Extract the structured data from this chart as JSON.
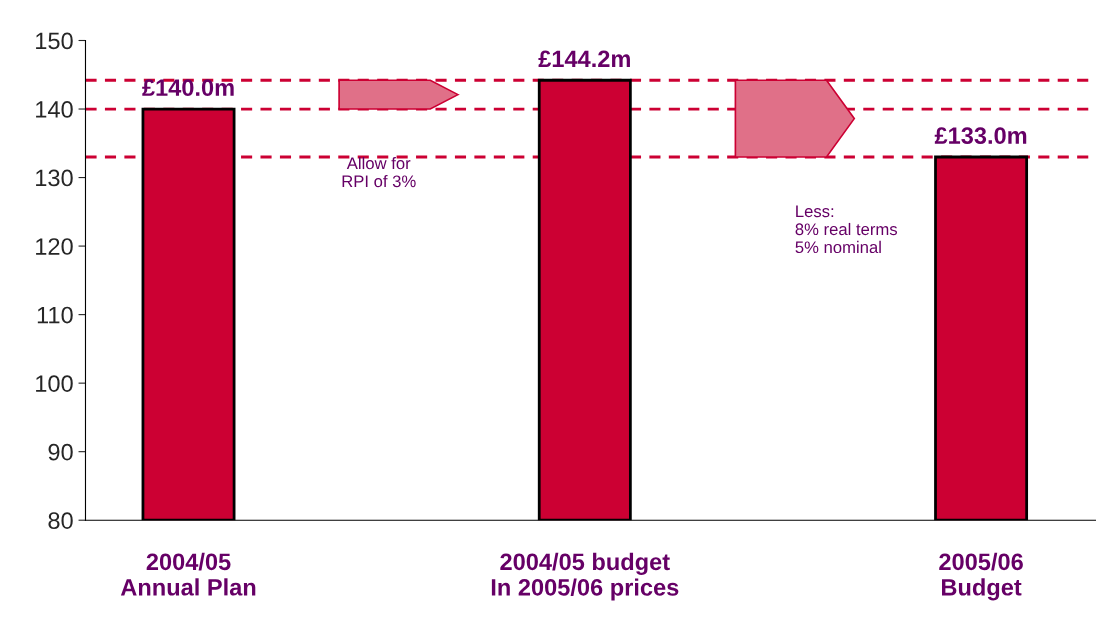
{
  "chart_data": {
    "type": "bar",
    "categories": [
      "2004/05\nAnnual Plan",
      "2004/05 budget\nIn 2005/06 prices",
      "2005/06\nBudget"
    ],
    "values": [
      140.0,
      144.2,
      133.0
    ],
    "color": "#cc0033",
    "value_labels": [
      "£140.0m",
      "£144.2m",
      "£133.0m"
    ],
    "ylim": [
      80,
      150
    ],
    "yticks": [
      80,
      90,
      100,
      110,
      120,
      130,
      140,
      150
    ],
    "grid": false,
    "ref_lines": [
      {
        "axis": "y",
        "value": 140.0,
        "color": "#cc0033",
        "line_style": "dashed"
      },
      {
        "axis": "y",
        "value": 144.2,
        "color": "#cc0033",
        "line_style": "dashed"
      },
      {
        "axis": "y",
        "value": 133.0,
        "color": "#cc0033",
        "line_style": "dashed"
      }
    ],
    "annotations": [
      "Allow for\nRPI of 3%",
      "Less:\n8% real terms\n5% nominal"
    ]
  }
}
